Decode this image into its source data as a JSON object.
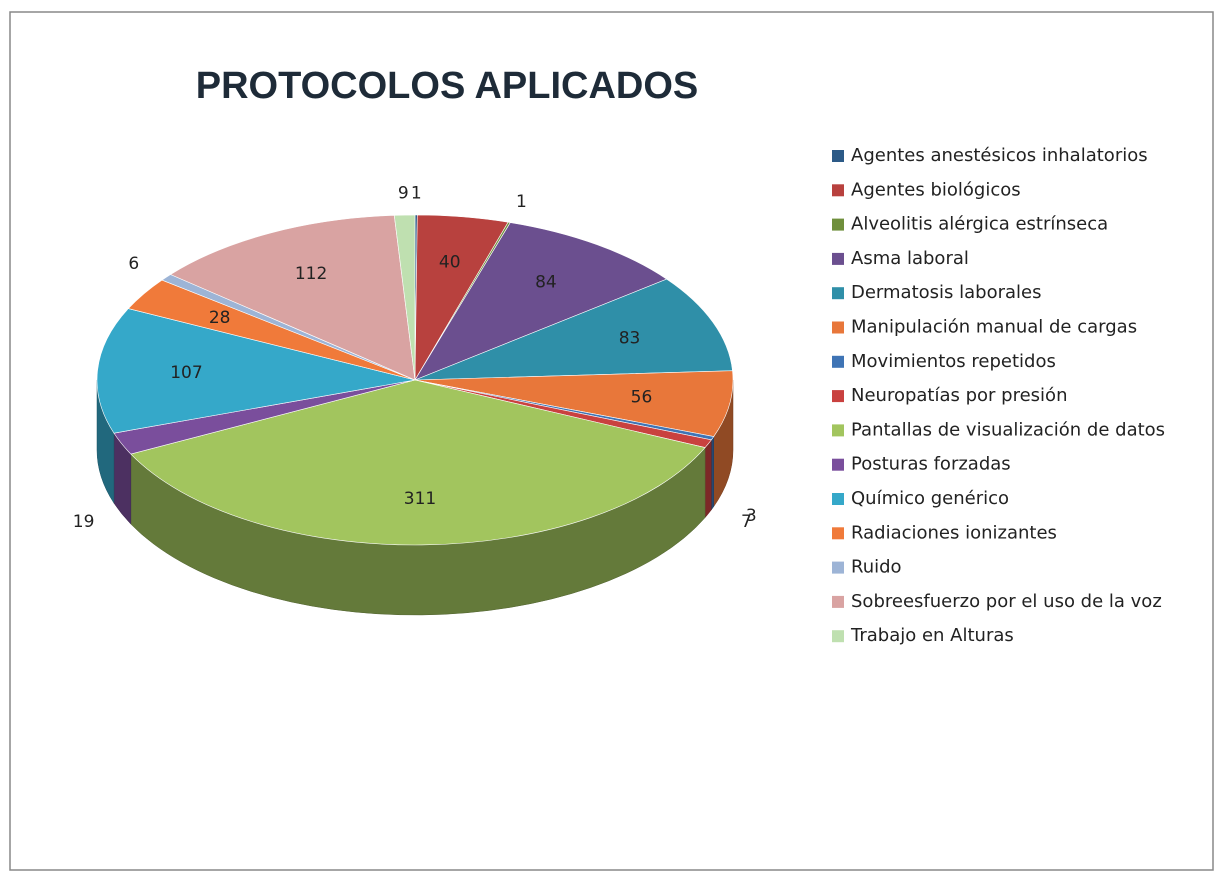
{
  "chart_data": {
    "type": "pie",
    "title": "PROTOCOLOS APLICADOS",
    "categories": [
      "Agentes anestésicos inhalatorios",
      "Agentes biológicos",
      "Alveolitis alérgica estrínseca",
      "Asma laboral",
      "Dermatosis laborales",
      "Manipulación manual de cargas",
      "Movimientos repetidos",
      "Neuropatías por presión",
      "Pantallas de visualización de datos",
      "Posturas forzadas",
      "Químico genérico",
      "Radiaciones ionizantes",
      "Ruido",
      "Sobreesfuerzo por el uso de la voz",
      "Trabajo en Alturas"
    ],
    "values": [
      1,
      40,
      1,
      84,
      83,
      56,
      3,
      7,
      311,
      19,
      107,
      28,
      6,
      112,
      9
    ],
    "colors": [
      "#2c5a87",
      "#b8413e",
      "#6f8f3c",
      "#6b4f8f",
      "#2f8fa8",
      "#e8773a",
      "#3f74b5",
      "#c9413f",
      "#a2c55e",
      "#7a4e9c",
      "#35a8c9",
      "#f07a3a",
      "#9db4d6",
      "#d9a3a2",
      "#bfe0b0"
    ],
    "legend": "right"
  }
}
